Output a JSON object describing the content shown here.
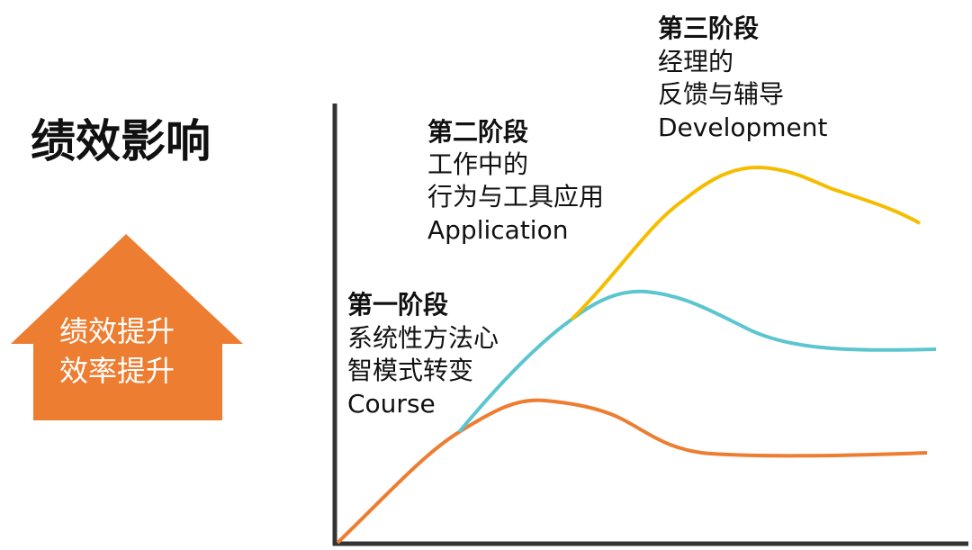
{
  "title": "绩效影响",
  "badge": {
    "lines": [
      "绩效提升",
      "效率提升"
    ]
  },
  "stages": [
    {
      "title": "第一阶段",
      "lines": [
        "系统性方法心",
        "智模式转变",
        "Course"
      ]
    },
    {
      "title": "第二阶段",
      "lines": [
        "工作中的",
        "行为与工具应用",
        "Application"
      ]
    },
    {
      "title": "第三阶段",
      "lines": [
        "经理的",
        "反馈与辅导",
        "Development"
      ]
    }
  ]
}
